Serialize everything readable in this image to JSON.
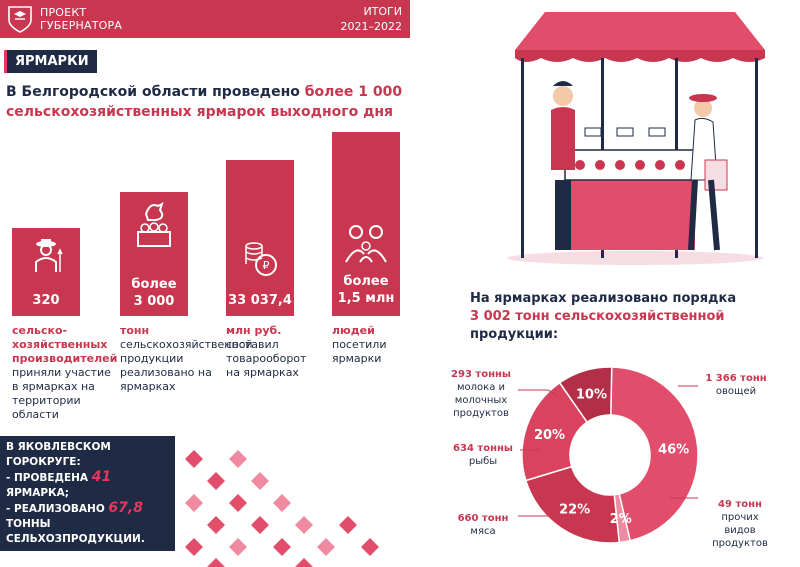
{
  "header": {
    "line1": "ПРОЕКТ",
    "line2": "ГУБЕРНАТОРА",
    "itogi": "ИТОГИ",
    "years": "2021–2022"
  },
  "tag": "ЯРМАРКИ",
  "headline": {
    "part1": "В Белгородской области проведено ",
    "part2": "более 1 000",
    "part3": "сельскохозяйственных ярмарок выходного дня"
  },
  "stats": [
    {
      "value1": "320",
      "value2": "",
      "desc_bold": "сельско-хозяйственных производителей",
      "desc": "приняли участие в ярмарках на территории области",
      "icon": "farmer-icon"
    },
    {
      "value1": "более",
      "value2": "3 000",
      "desc_bold": "тонн",
      "desc": "сельскохозяйственной продукции реализовано на ярмарках",
      "icon": "produce-basket-icon"
    },
    {
      "value1": "33 037,4",
      "value2": "",
      "desc_bold": "млн руб.",
      "desc": "составил товарооборот на ярмарках",
      "icon": "coins-icon"
    },
    {
      "value1": "более",
      "value2": "1,5 млн",
      "desc_bold": "людей",
      "desc": "посетили ярмарки",
      "icon": "family-icon"
    }
  ],
  "note": {
    "line1": "В ЯКОВЛЕВСКОМ ГОРОКРУГЕ:",
    "line2a": "- ПРОВЕДЕНА ",
    "line2b": "41",
    "line2c": " ЯРМАРКА;",
    "line3a": "- РЕАЛИЗОВАНО ",
    "line3b": "67,8",
    "line3c": " ТОННЫ",
    "line4": "СЕЛЬХОЗПРОДУКЦИИ."
  },
  "sales": {
    "line1": "На ярмарках реализовано порядка",
    "line2": "3 002 тонн сельскохозяйственной",
    "line3": "продукции:"
  },
  "chart_data": {
    "type": "pie",
    "categories": [
      "овощей",
      "прочих видов продуктов",
      "мяса",
      "рыбы",
      "молока и молочных продуктов"
    ],
    "values": [
      46,
      2,
      22,
      20,
      10
    ],
    "amounts": [
      "1 366 тонн",
      "49 тонн",
      "660 тонн",
      "634 тонны",
      "293 тонны"
    ],
    "value_labels": [
      "46%",
      "2%",
      "22%",
      "20%",
      "10%"
    ],
    "colors": [
      "#e14d6b",
      "#f08aa0",
      "#c8374f",
      "#d9435f",
      "#b22f47"
    ]
  },
  "labels": {
    "dairy_amount": "293 тонны",
    "dairy_text": "молока и молочных продуктов",
    "veg_amount": "1 366 тонн",
    "veg_text": "овощей",
    "fish_amount": "634 тонны",
    "fish_text": "рыбы",
    "other_amount": "49 тонн",
    "other_text": "прочих видов продуктов",
    "meat_amount": "660 тонн",
    "meat_text": "мяса"
  },
  "colors": {
    "accent": "#c8374f",
    "navy": "#1f2a44",
    "pink": "#e8365d"
  }
}
